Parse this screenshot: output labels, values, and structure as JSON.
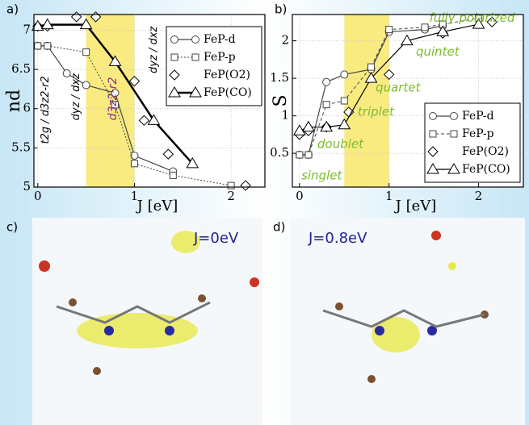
{
  "chart_data": [
    {
      "type": "line",
      "panel": "a)",
      "xlabel": "J [eV]",
      "ylabel": "nd",
      "xlim": [
        -0.04,
        2.35
      ],
      "ylim": [
        5,
        7.2
      ],
      "xticks": [
        0,
        1,
        2
      ],
      "yticks": [
        5,
        5.5,
        6,
        6.5,
        7
      ],
      "highlight": [
        0.5,
        1.0
      ],
      "legend": "upper right",
      "series": [
        {
          "name": "FeP-d",
          "color": "#444444",
          "marker": "circle",
          "dash": "solid",
          "x": [
            0,
            0.1,
            0.3,
            0.5,
            0.8,
            1.0,
            1.4
          ],
          "values": [
            6.8,
            6.8,
            6.45,
            6.3,
            6.2,
            5.4,
            5.2
          ]
        },
        {
          "name": "FeP-p",
          "color": "#444444",
          "marker": "square",
          "dash": "dotted",
          "x": [
            0,
            0.1,
            0.5,
            0.8,
            1.0,
            1.4,
            2.0
          ],
          "values": [
            6.8,
            6.8,
            6.72,
            6.05,
            5.3,
            5.15,
            5.02
          ]
        },
        {
          "name": "FeP(O2)",
          "color": "#000000",
          "marker": "diamond",
          "dash": "none",
          "x": [
            0,
            0.1,
            0.4,
            0.6,
            1.0,
            1.1,
            1.35,
            2.15
          ],
          "values": [
            7.05,
            7.05,
            7.17,
            7.17,
            6.35,
            5.85,
            5.42,
            5.02
          ]
        },
        {
          "name": "FeP(CO)",
          "color": "#000000",
          "marker": "triangle",
          "dash": "thick",
          "x": [
            0,
            0.1,
            0.5,
            0.8,
            1.2,
            1.6
          ],
          "values": [
            7.05,
            7.07,
            7.07,
            6.6,
            5.85,
            5.3
          ]
        }
      ],
      "annotations": [
        "t2g / d3z2-r2",
        "dyz / dxz",
        "d3z2-r2",
        "dyz / dxz"
      ]
    },
    {
      "type": "line",
      "panel": "b)",
      "xlabel": "J [eV]",
      "ylabel": "S",
      "xlim": [
        -0.08,
        2.5
      ],
      "ylim": [
        0.05,
        2.35
      ],
      "xticks": [
        0,
        1,
        2
      ],
      "yticks": [
        0.5,
        1,
        1.5,
        2
      ],
      "highlight": [
        0.5,
        1.0
      ],
      "legend": "lower right",
      "series": [
        {
          "name": "FeP-d",
          "color": "#444444",
          "marker": "circle",
          "dash": "solid",
          "x": [
            0,
            0.1,
            0.3,
            0.5,
            0.8,
            1.0,
            1.4,
            1.6
          ],
          "values": [
            0.48,
            0.48,
            1.45,
            1.55,
            1.62,
            2.12,
            2.15,
            2.2
          ]
        },
        {
          "name": "FeP-p",
          "color": "#444444",
          "marker": "square",
          "dash": "dashed",
          "x": [
            0,
            0.1,
            0.3,
            0.5,
            0.8,
            1.0,
            1.4,
            1.6,
            2.0
          ],
          "values": [
            0.48,
            0.48,
            1.15,
            1.2,
            1.65,
            2.15,
            2.18,
            2.22,
            2.3
          ]
        },
        {
          "name": "FeP(O2)",
          "color": "#000000",
          "marker": "diamond",
          "dash": "none",
          "x": [
            0,
            0.1,
            0.3,
            0.55,
            1.0,
            1.6,
            2.15
          ],
          "values": [
            0.75,
            0.8,
            0.85,
            1.05,
            1.55,
            2.1,
            2.25
          ]
        },
        {
          "name": "FeP(CO)",
          "color": "#000000",
          "marker": "triangle",
          "dash": "solid",
          "x": [
            0,
            0.1,
            0.3,
            0.5,
            0.8,
            1.2,
            1.6,
            2.0
          ],
          "values": [
            0.8,
            0.85,
            0.85,
            0.88,
            1.5,
            2.0,
            2.12,
            2.22
          ]
        }
      ],
      "annotations": [
        "singlet",
        "doublet",
        "triplet",
        "quartet",
        "quintet",
        "fully polarized"
      ]
    }
  ],
  "panels": {
    "c": "c)",
    "d": "d)",
    "c_title": "J=0eV",
    "d_title": "J=0.8eV"
  }
}
